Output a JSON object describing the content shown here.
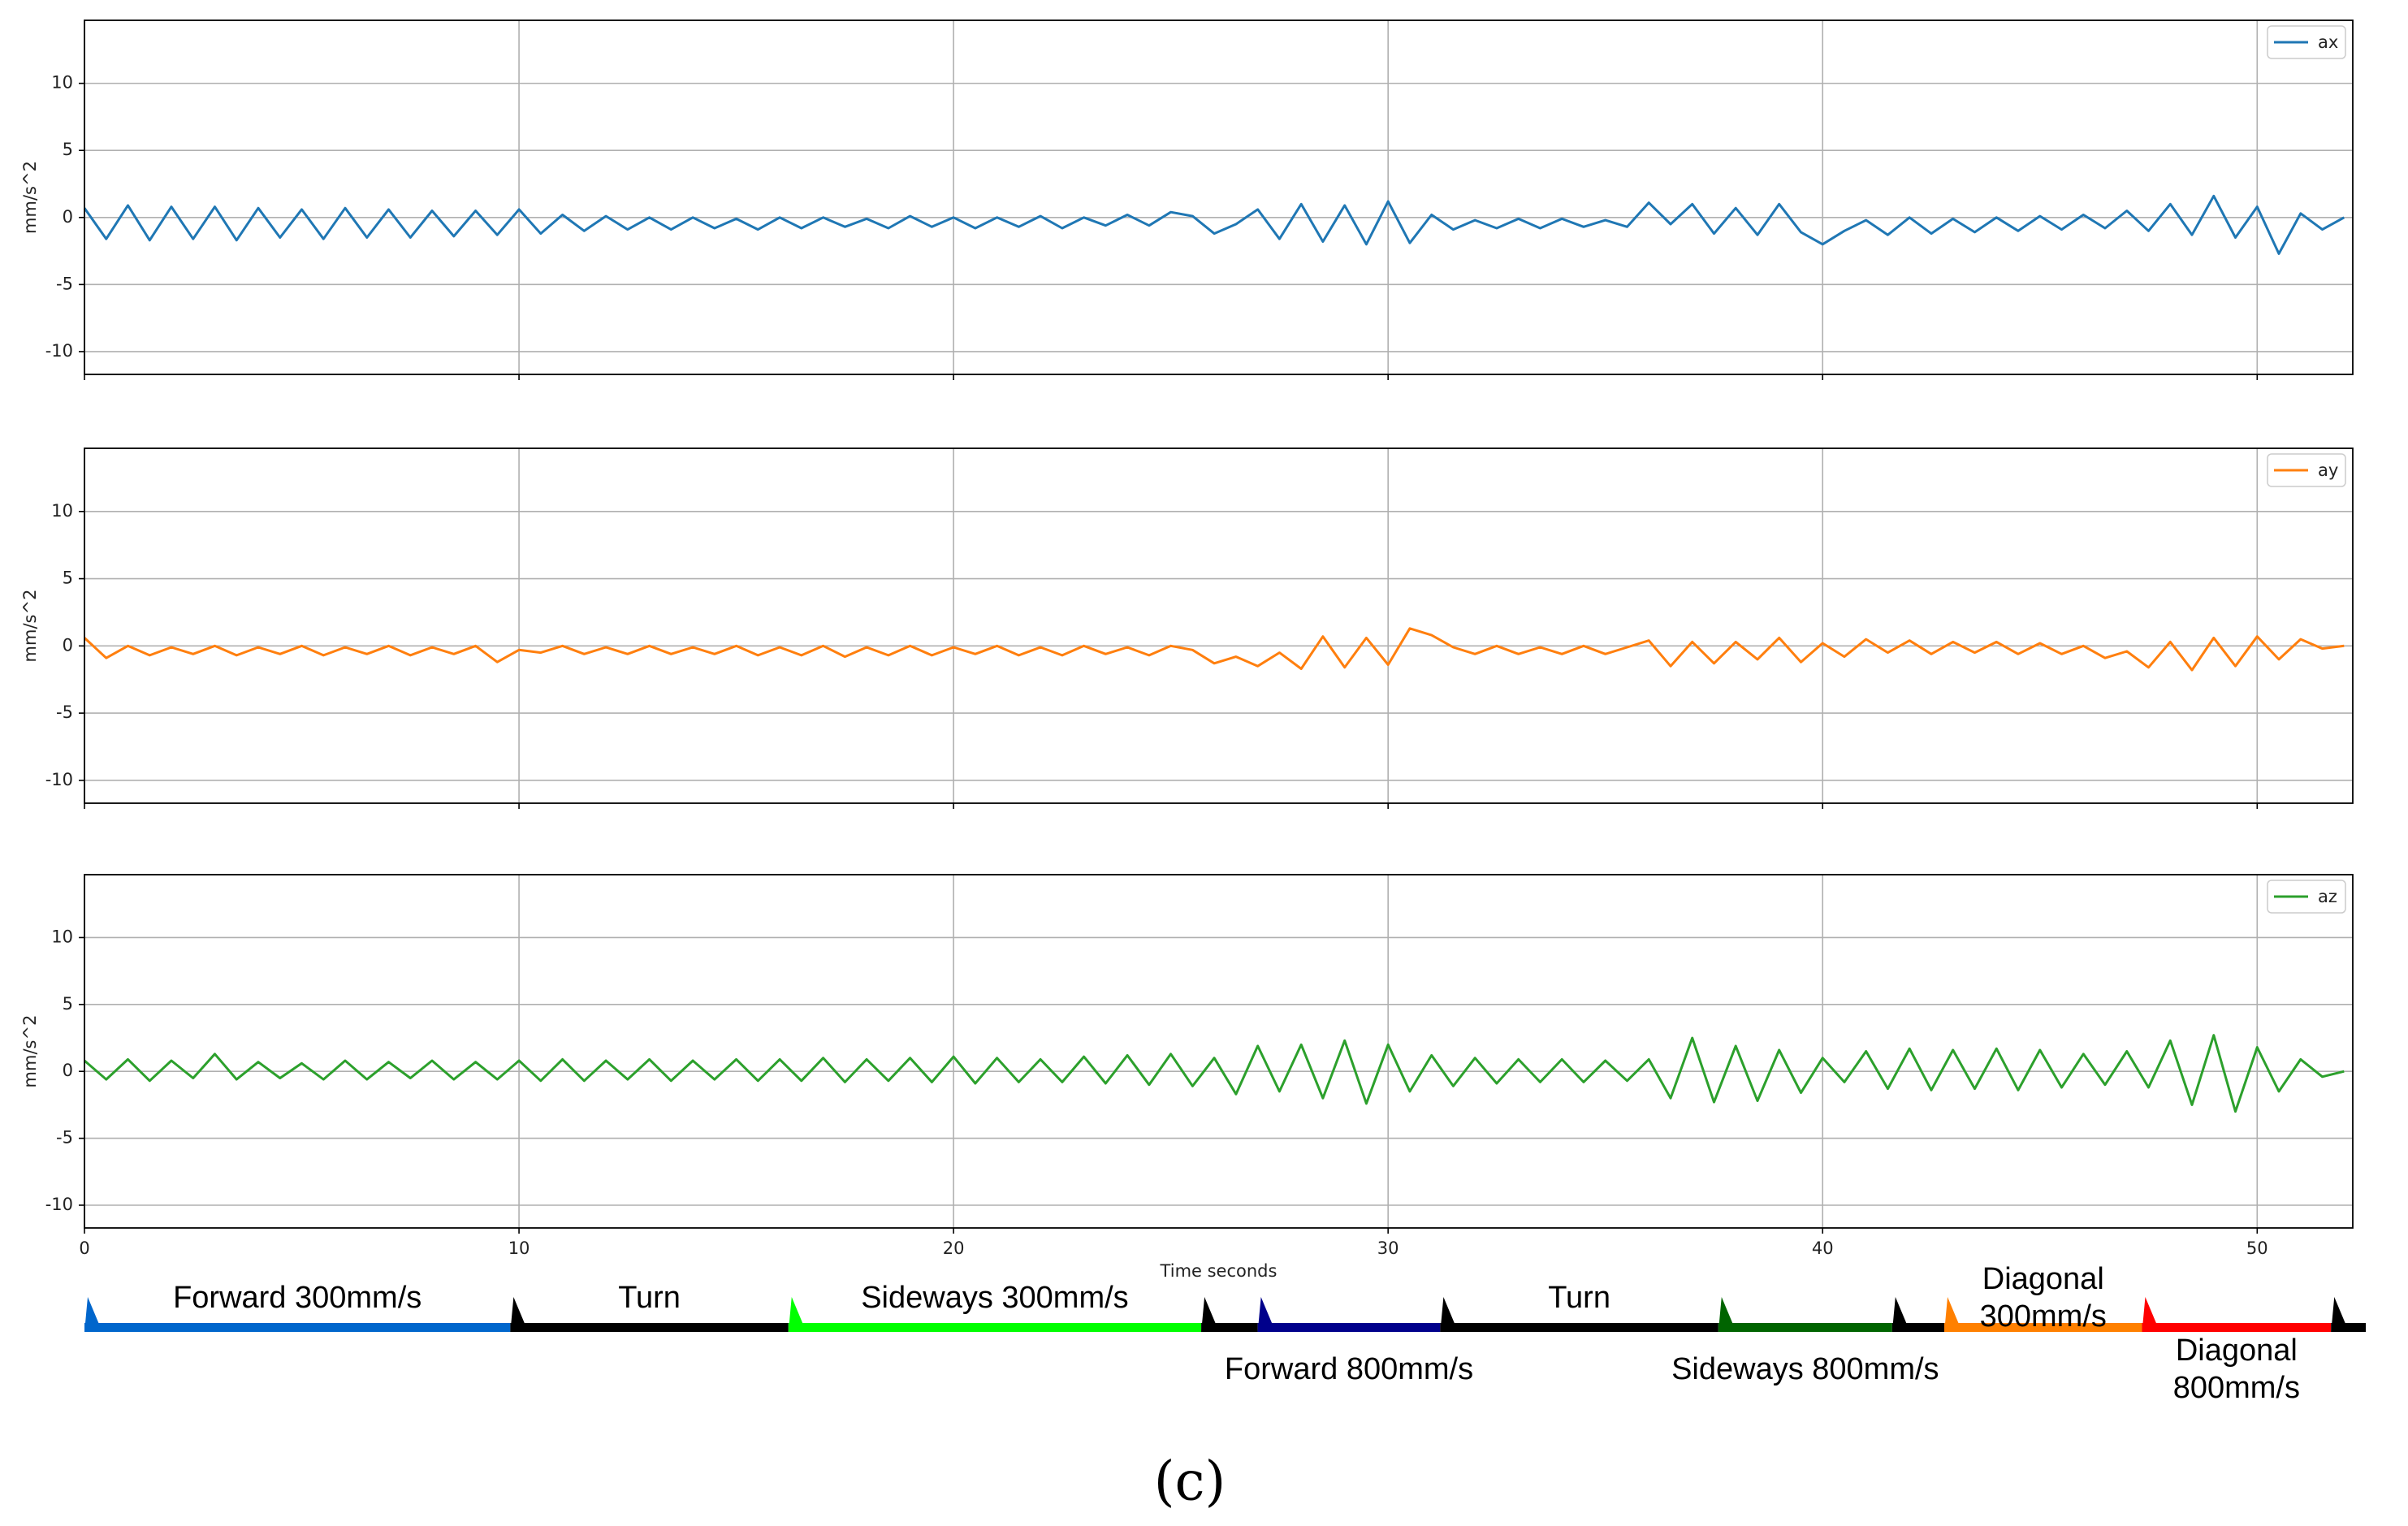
{
  "chart_data": [
    {
      "type": "line",
      "ylabel": "mm/s^2",
      "xlim": [
        0,
        52.2
      ],
      "ylim": [
        -11.7,
        14.7
      ],
      "xticks": [
        0,
        10,
        20,
        30,
        40,
        50
      ],
      "yticks": [
        -10,
        -5,
        0,
        5,
        10
      ],
      "grid": true,
      "legend": "upper right",
      "x": [
        0,
        0.5,
        1,
        1.5,
        2,
        2.5,
        3,
        3.5,
        4,
        4.5,
        5,
        5.5,
        6,
        6.5,
        7,
        7.5,
        8,
        8.5,
        9,
        9.5,
        10,
        10.5,
        11,
        11.5,
        12,
        12.5,
        13,
        13.5,
        14,
        14.5,
        15,
        15.5,
        16,
        16.5,
        17,
        17.5,
        18,
        18.5,
        19,
        19.5,
        20,
        20.5,
        21,
        21.5,
        22,
        22.5,
        23,
        23.5,
        24,
        24.5,
        25,
        25.5,
        26,
        26.5,
        27,
        27.5,
        28,
        28.5,
        29,
        29.5,
        30,
        30.5,
        31,
        31.5,
        32,
        32.5,
        33,
        33.5,
        34,
        34.5,
        35,
        35.5,
        36,
        36.5,
        37,
        37.5,
        38,
        38.5,
        39,
        39.5,
        40,
        40.5,
        41,
        41.5,
        42,
        42.5,
        43,
        43.5,
        44,
        44.5,
        45,
        45.5,
        46,
        46.5,
        47,
        47.5,
        48,
        48.5,
        49,
        49.5,
        50,
        50.5,
        51,
        51.5,
        52
      ],
      "series": [
        {
          "name": "ax",
          "color": "#1f77b4",
          "values": [
            0.7,
            -1.6,
            0.9,
            -1.7,
            0.8,
            -1.6,
            0.8,
            -1.7,
            0.7,
            -1.5,
            0.6,
            -1.6,
            0.7,
            -1.5,
            0.6,
            -1.5,
            0.5,
            -1.4,
            0.5,
            -1.3,
            0.6,
            -1.2,
            0.2,
            -1.0,
            0.1,
            -0.9,
            0.0,
            -0.9,
            0.0,
            -0.8,
            -0.1,
            -0.9,
            0.0,
            -0.8,
            0.0,
            -0.7,
            -0.1,
            -0.8,
            0.1,
            -0.7,
            0.0,
            -0.8,
            0.0,
            -0.7,
            0.1,
            -0.8,
            0.0,
            -0.6,
            0.2,
            -0.6,
            0.4,
            0.1,
            -1.2,
            -0.5,
            0.6,
            -1.6,
            1.0,
            -1.8,
            0.9,
            -2.0,
            1.2,
            -1.9,
            0.2,
            -0.9,
            -0.2,
            -0.8,
            -0.1,
            -0.8,
            -0.1,
            -0.7,
            -0.2,
            -0.7,
            1.1,
            -0.5,
            1.0,
            -1.2,
            0.7,
            -1.3,
            1.0,
            -1.1,
            -2.0,
            -1.0,
            -0.2,
            -1.3,
            0.0,
            -1.2,
            -0.1,
            -1.1,
            0.0,
            -1.0,
            0.1,
            -0.9,
            0.2,
            -0.8,
            0.5,
            -1.0,
            1.0,
            -1.3,
            1.6,
            -1.5,
            0.8,
            -2.7,
            0.3,
            -0.9,
            0.0
          ]
        }
      ]
    },
    {
      "type": "line",
      "ylabel": "mm/s^2",
      "xlim": [
        0,
        52.2
      ],
      "ylim": [
        -11.7,
        14.7
      ],
      "xticks": [
        0,
        10,
        20,
        30,
        40,
        50
      ],
      "yticks": [
        -10,
        -5,
        0,
        5,
        10
      ],
      "grid": true,
      "legend": "upper right",
      "x": [
        0,
        0.5,
        1,
        1.5,
        2,
        2.5,
        3,
        3.5,
        4,
        4.5,
        5,
        5.5,
        6,
        6.5,
        7,
        7.5,
        8,
        8.5,
        9,
        9.5,
        10,
        10.5,
        11,
        11.5,
        12,
        12.5,
        13,
        13.5,
        14,
        14.5,
        15,
        15.5,
        16,
        16.5,
        17,
        17.5,
        18,
        18.5,
        19,
        19.5,
        20,
        20.5,
        21,
        21.5,
        22,
        22.5,
        23,
        23.5,
        24,
        24.5,
        25,
        25.5,
        26,
        26.5,
        27,
        27.5,
        28,
        28.5,
        29,
        29.5,
        30,
        30.5,
        31,
        31.5,
        32,
        32.5,
        33,
        33.5,
        34,
        34.5,
        35,
        35.5,
        36,
        36.5,
        37,
        37.5,
        38,
        38.5,
        39,
        39.5,
        40,
        40.5,
        41,
        41.5,
        42,
        42.5,
        43,
        43.5,
        44,
        44.5,
        45,
        45.5,
        46,
        46.5,
        47,
        47.5,
        48,
        48.5,
        49,
        49.5,
        50,
        50.5,
        51,
        51.5,
        52
      ],
      "series": [
        {
          "name": "ay",
          "color": "#ff7f0e",
          "values": [
            0.6,
            -0.9,
            0.0,
            -0.7,
            -0.1,
            -0.6,
            0.0,
            -0.7,
            -0.1,
            -0.6,
            0.0,
            -0.7,
            -0.1,
            -0.6,
            0.0,
            -0.7,
            -0.1,
            -0.6,
            0.0,
            -1.2,
            -0.3,
            -0.5,
            0.0,
            -0.6,
            -0.1,
            -0.6,
            0.0,
            -0.6,
            -0.1,
            -0.6,
            0.0,
            -0.7,
            -0.1,
            -0.7,
            0.0,
            -0.8,
            -0.1,
            -0.7,
            0.0,
            -0.7,
            -0.1,
            -0.6,
            0.0,
            -0.7,
            -0.1,
            -0.7,
            0.0,
            -0.6,
            -0.1,
            -0.7,
            0.0,
            -0.3,
            -1.3,
            -0.8,
            -1.5,
            -0.5,
            -1.7,
            0.7,
            -1.6,
            0.6,
            -1.4,
            1.3,
            0.8,
            -0.1,
            -0.6,
            0.0,
            -0.6,
            -0.1,
            -0.6,
            0.0,
            -0.6,
            -0.1,
            0.4,
            -1.5,
            0.3,
            -1.3,
            0.3,
            -1.0,
            0.6,
            -1.2,
            0.2,
            -0.8,
            0.5,
            -0.5,
            0.4,
            -0.6,
            0.3,
            -0.5,
            0.3,
            -0.6,
            0.2,
            -0.6,
            0.0,
            -0.9,
            -0.4,
            -1.6,
            0.3,
            -1.8,
            0.6,
            -1.5,
            0.7,
            -1.0,
            0.5,
            -0.2,
            0.0
          ]
        }
      ]
    },
    {
      "type": "line",
      "ylabel": "mm/s^2",
      "xlabel": "Time seconds",
      "xlim": [
        0,
        52.2
      ],
      "ylim": [
        -11.7,
        14.7
      ],
      "xticks": [
        0,
        10,
        20,
        30,
        40,
        50
      ],
      "yticks": [
        -10,
        -5,
        0,
        5,
        10
      ],
      "grid": true,
      "legend": "upper right",
      "x": [
        0,
        0.5,
        1,
        1.5,
        2,
        2.5,
        3,
        3.5,
        4,
        4.5,
        5,
        5.5,
        6,
        6.5,
        7,
        7.5,
        8,
        8.5,
        9,
        9.5,
        10,
        10.5,
        11,
        11.5,
        12,
        12.5,
        13,
        13.5,
        14,
        14.5,
        15,
        15.5,
        16,
        16.5,
        17,
        17.5,
        18,
        18.5,
        19,
        19.5,
        20,
        20.5,
        21,
        21.5,
        22,
        22.5,
        23,
        23.5,
        24,
        24.5,
        25,
        25.5,
        26,
        26.5,
        27,
        27.5,
        28,
        28.5,
        29,
        29.5,
        30,
        30.5,
        31,
        31.5,
        32,
        32.5,
        33,
        33.5,
        34,
        34.5,
        35,
        35.5,
        36,
        36.5,
        37,
        37.5,
        38,
        38.5,
        39,
        39.5,
        40,
        40.5,
        41,
        41.5,
        42,
        42.5,
        43,
        43.5,
        44,
        44.5,
        45,
        45.5,
        46,
        46.5,
        47,
        47.5,
        48,
        48.5,
        49,
        49.5,
        50,
        50.5,
        51,
        51.5,
        52
      ],
      "series": [
        {
          "name": "az",
          "color": "#2ca02c",
          "values": [
            0.8,
            -0.6,
            0.9,
            -0.7,
            0.8,
            -0.5,
            1.3,
            -0.6,
            0.7,
            -0.5,
            0.6,
            -0.6,
            0.8,
            -0.6,
            0.7,
            -0.5,
            0.8,
            -0.6,
            0.7,
            -0.6,
            0.8,
            -0.7,
            0.9,
            -0.7,
            0.8,
            -0.6,
            0.9,
            -0.7,
            0.8,
            -0.6,
            0.9,
            -0.7,
            0.9,
            -0.7,
            1.0,
            -0.8,
            0.9,
            -0.7,
            1.0,
            -0.8,
            1.1,
            -0.9,
            1.0,
            -0.8,
            0.9,
            -0.8,
            1.1,
            -0.9,
            1.2,
            -1.0,
            1.3,
            -1.1,
            1.0,
            -1.7,
            1.9,
            -1.5,
            2.0,
            -2.0,
            2.3,
            -2.4,
            2.0,
            -1.5,
            1.2,
            -1.1,
            1.0,
            -0.9,
            0.9,
            -0.8,
            0.9,
            -0.8,
            0.8,
            -0.7,
            0.9,
            -2.0,
            2.5,
            -2.3,
            1.9,
            -2.2,
            1.6,
            -1.6,
            1.0,
            -0.8,
            1.5,
            -1.3,
            1.7,
            -1.4,
            1.6,
            -1.3,
            1.7,
            -1.4,
            1.6,
            -1.2,
            1.3,
            -1.0,
            1.5,
            -1.2,
            2.3,
            -2.5,
            2.7,
            -3.0,
            1.8,
            -1.5,
            0.9,
            -0.4,
            0.0
          ]
        }
      ]
    }
  ],
  "activity_bar": {
    "segments": [
      {
        "label": "Forward 300mm/s",
        "label_position": "above",
        "color": "#0066cc",
        "start": 0,
        "end": 9.8
      },
      {
        "label": "Turn",
        "label_position": "above",
        "color": "#000000",
        "start": 9.8,
        "end": 16.2
      },
      {
        "label": "Sideways 300mm/s",
        "label_position": "above",
        "color": "#00ff00",
        "start": 16.2,
        "end": 25.7
      },
      {
        "color": "#000000",
        "start": 25.7,
        "end": 27.0
      },
      {
        "label": "Forward 800mm/s",
        "label_position": "below",
        "color": "#00008b",
        "start": 27.0,
        "end": 31.2
      },
      {
        "label": "Turn",
        "label_position": "above",
        "color": "#000000",
        "start": 31.2,
        "end": 37.6
      },
      {
        "label": "Sideways 800mm/s",
        "label_position": "below",
        "color": "#006400",
        "start": 37.6,
        "end": 41.6
      },
      {
        "color": "#000000",
        "start": 41.6,
        "end": 42.8
      },
      {
        "label": "Diagonal\n300mm/s",
        "label_position": "above",
        "color": "#ff8000",
        "start": 42.8,
        "end": 47.35
      },
      {
        "label": "Diagonal 800mm/s",
        "label_position": "below",
        "color": "#ff0000",
        "start": 47.35,
        "end": 51.7
      },
      {
        "color": "#000000",
        "start": 51.7,
        "end": 52.5
      }
    ]
  },
  "caption": "(c)"
}
